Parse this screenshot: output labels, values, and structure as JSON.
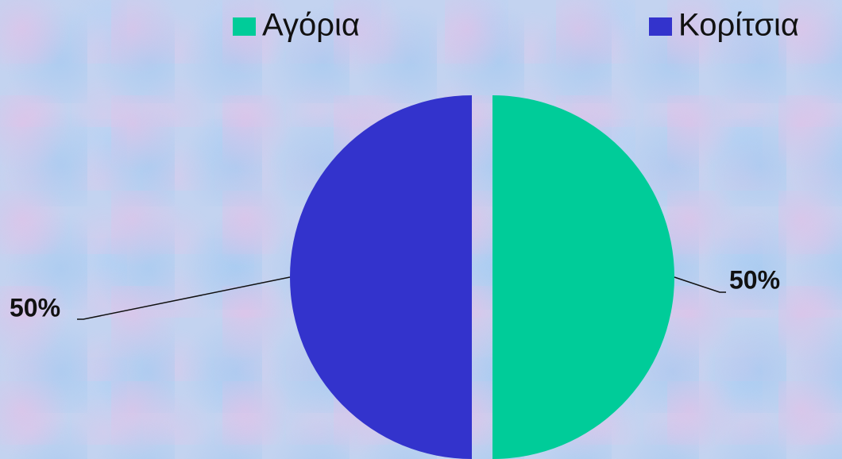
{
  "chart_data": {
    "type": "pie",
    "categories": [
      "Αγόρια",
      "Κορίτσια"
    ],
    "values": [
      50,
      50
    ],
    "value_labels": [
      "50%",
      "50%"
    ],
    "colors": [
      "#00cc99",
      "#3333cc"
    ],
    "legend": "top"
  }
}
